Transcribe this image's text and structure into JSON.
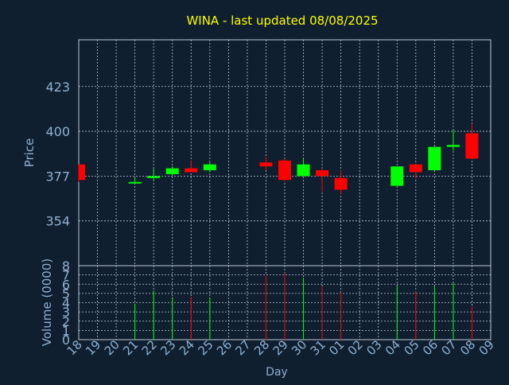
{
  "chart_data": {
    "type": "candlestick",
    "title": "WINA - last updated 08/08/2025",
    "xlabel": "Day",
    "colors": {
      "background": "#0f1f30",
      "title": "#ffff00",
      "axis_text": "#8fb0cf",
      "grid": "#bcc6d0",
      "up": "#00ff00",
      "down": "#ff0000"
    },
    "x_ticks": [
      "18",
      "19",
      "20",
      "21",
      "22",
      "23",
      "24",
      "25",
      "26",
      "27",
      "28",
      "29",
      "30",
      "31",
      "01",
      "02",
      "03",
      "04",
      "05",
      "06",
      "07",
      "08",
      "09"
    ],
    "price_panel": {
      "ylabel": "Price",
      "ylim": [
        331,
        447
      ],
      "yticks": [
        354,
        377,
        400,
        423
      ],
      "grid": true
    },
    "volume_panel": {
      "ylabel": "Volume (0000)",
      "ylim": [
        0,
        8
      ],
      "yticks": [
        0,
        1,
        2,
        3,
        4,
        5,
        6,
        7,
        8
      ],
      "grid": true
    },
    "candles": [
      {
        "day": "18",
        "open": 383,
        "high": 383,
        "low": 374,
        "close": 375,
        "volume": null
      },
      {
        "day": "21",
        "open": 374,
        "high": 376,
        "low": 373,
        "close": 374,
        "volume": 3.9
      },
      {
        "day": "22",
        "open": 376,
        "high": 381,
        "low": 375,
        "close": 377,
        "volume": 5.3
      },
      {
        "day": "23",
        "open": 378,
        "high": 382,
        "low": 377,
        "close": 381,
        "volume": 4.6
      },
      {
        "day": "24",
        "open": 381,
        "high": 385,
        "low": 379,
        "close": 379,
        "volume": 4.6
      },
      {
        "day": "25",
        "open": 380,
        "high": 384,
        "low": 379,
        "close": 383,
        "volume": 4.6
      },
      {
        "day": "28",
        "open": 384,
        "high": 387,
        "low": 380,
        "close": 382,
        "volume": 7.0
      },
      {
        "day": "29",
        "open": 385,
        "high": 386,
        "low": 374,
        "close": 375,
        "volume": 7.2
      },
      {
        "day": "30",
        "open": 377,
        "high": 386,
        "low": 377,
        "close": 383,
        "volume": 6.7
      },
      {
        "day": "31",
        "open": 380,
        "high": 381,
        "low": 369,
        "close": 377,
        "volume": 5.7
      },
      {
        "day": "01",
        "open": 376,
        "high": 380,
        "low": 368,
        "close": 370,
        "volume": 5.1
      },
      {
        "day": "04",
        "open": 372,
        "high": 382,
        "low": 372,
        "close": 382,
        "volume": 5.8
      },
      {
        "day": "05",
        "open": 383,
        "high": 383,
        "low": 376,
        "close": 379,
        "volume": 5.2
      },
      {
        "day": "06",
        "open": 380,
        "high": 392,
        "low": 380,
        "close": 392,
        "volume": 5.8
      },
      {
        "day": "07",
        "open": 392,
        "high": 401,
        "low": 390,
        "close": 393,
        "volume": 6.1
      },
      {
        "day": "08",
        "open": 399,
        "high": 404,
        "low": 386,
        "close": 386,
        "volume": 3.6
      }
    ]
  }
}
